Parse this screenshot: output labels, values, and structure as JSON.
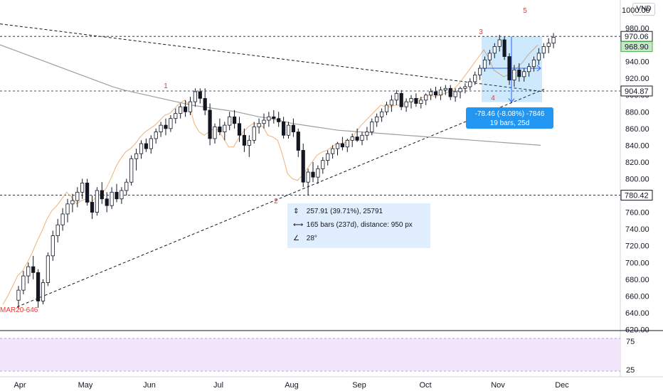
{
  "currency_label": "VND",
  "chart_data": [
    {
      "type": "candlestick",
      "title": "",
      "y_axis": {
        "range": [
          612,
          1012
        ],
        "ticks": [
          620,
          640,
          660,
          680,
          700,
          720,
          740,
          760,
          780,
          800,
          820,
          840,
          860,
          880,
          900,
          920,
          940,
          960,
          980
        ],
        "partial_top_label": "1000.00",
        "position": "right"
      },
      "x_axis": {
        "labels": [
          "Apr",
          "May",
          "Jun",
          "Jul",
          "Aug",
          "Sep",
          "Oct",
          "Nov",
          "Dec"
        ]
      },
      "price_labels": [
        {
          "value": "970.06",
          "style": "black"
        },
        {
          "value": "968.90",
          "style": "green"
        },
        {
          "value": "904.87",
          "style": "black"
        },
        {
          "value": "780.42",
          "style": "black"
        }
      ],
      "horizontal_lines": [
        970.06,
        904.87,
        780.42
      ],
      "wave_labels": [
        "1",
        "2",
        "3",
        "4",
        "5"
      ],
      "low_annotation": "MAR20-646",
      "candles": [
        [
          655,
          672,
          645,
          667
        ],
        [
          667,
          690,
          662,
          684
        ],
        [
          684,
          700,
          675,
          695
        ],
        [
          695,
          708,
          680,
          688
        ],
        [
          688,
          692,
          646,
          654
        ],
        [
          654,
          680,
          650,
          676
        ],
        [
          676,
          712,
          672,
          708
        ],
        [
          708,
          738,
          702,
          732
        ],
        [
          732,
          752,
          724,
          745
        ],
        [
          745,
          765,
          738,
          758
        ],
        [
          758,
          776,
          748,
          770
        ],
        [
          770,
          782,
          760,
          774
        ],
        [
          774,
          790,
          766,
          784
        ],
        [
          784,
          800,
          776,
          795
        ],
        [
          795,
          800,
          768,
          772
        ],
        [
          772,
          780,
          752,
          760
        ],
        [
          760,
          790,
          756,
          786
        ],
        [
          786,
          796,
          770,
          776
        ],
        [
          776,
          784,
          760,
          768
        ],
        [
          768,
          790,
          764,
          784
        ],
        [
          784,
          794,
          772,
          776
        ],
        [
          776,
          790,
          770,
          786
        ],
        [
          786,
          800,
          780,
          796
        ],
        [
          796,
          828,
          792,
          824
        ],
        [
          824,
          836,
          810,
          830
        ],
        [
          830,
          846,
          824,
          842
        ],
        [
          842,
          848,
          832,
          836
        ],
        [
          836,
          852,
          830,
          848
        ],
        [
          848,
          860,
          842,
          856
        ],
        [
          856,
          868,
          850,
          864
        ],
        [
          864,
          872,
          852,
          860
        ],
        [
          860,
          876,
          856,
          872
        ],
        [
          872,
          884,
          866,
          878
        ],
        [
          878,
          890,
          872,
          886
        ],
        [
          886,
          894,
          874,
          880
        ],
        [
          880,
          898,
          876,
          892
        ],
        [
          892,
          908,
          886,
          904
        ],
        [
          904,
          908,
          890,
          896
        ],
        [
          896,
          908,
          876,
          882
        ],
        [
          882,
          890,
          840,
          848
        ],
        [
          848,
          866,
          842,
          862
        ],
        [
          862,
          872,
          852,
          856
        ],
        [
          856,
          868,
          846,
          864
        ],
        [
          864,
          880,
          858,
          874
        ],
        [
          874,
          882,
          860,
          866
        ],
        [
          866,
          874,
          844,
          852
        ],
        [
          852,
          860,
          832,
          840
        ],
        [
          840,
          852,
          826,
          846
        ],
        [
          846,
          868,
          842,
          862
        ],
        [
          862,
          872,
          854,
          866
        ],
        [
          866,
          878,
          860,
          870
        ],
        [
          870,
          880,
          862,
          874
        ],
        [
          874,
          882,
          866,
          872
        ],
        [
          872,
          880,
          862,
          868
        ],
        [
          868,
          874,
          848,
          852
        ],
        [
          852,
          868,
          848,
          864
        ],
        [
          864,
          872,
          850,
          856
        ],
        [
          856,
          860,
          826,
          834
        ],
        [
          834,
          842,
          790,
          796
        ],
        [
          796,
          812,
          780,
          808
        ],
        [
          808,
          820,
          796,
          802
        ],
        [
          802,
          816,
          794,
          812
        ],
        [
          812,
          826,
          806,
          822
        ],
        [
          822,
          834,
          816,
          830
        ],
        [
          830,
          840,
          824,
          836
        ],
        [
          836,
          844,
          828,
          842
        ],
        [
          842,
          850,
          834,
          838
        ],
        [
          838,
          848,
          832,
          846
        ],
        [
          846,
          854,
          838,
          850
        ],
        [
          850,
          860,
          844,
          846
        ],
        [
          846,
          856,
          840,
          852
        ],
        [
          852,
          862,
          846,
          856
        ],
        [
          856,
          872,
          852,
          868
        ],
        [
          868,
          878,
          862,
          874
        ],
        [
          874,
          884,
          868,
          880
        ],
        [
          880,
          892,
          876,
          888
        ],
        [
          888,
          900,
          880,
          894
        ],
        [
          894,
          906,
          888,
          902
        ],
        [
          902,
          906,
          882,
          886
        ],
        [
          886,
          896,
          880,
          892
        ],
        [
          892,
          900,
          884,
          896
        ],
        [
          896,
          902,
          886,
          890
        ],
        [
          890,
          898,
          884,
          894
        ],
        [
          894,
          902,
          888,
          900
        ],
        [
          900,
          908,
          894,
          904
        ],
        [
          904,
          910,
          896,
          900
        ],
        [
          900,
          910,
          894,
          906
        ],
        [
          906,
          912,
          900,
          908
        ],
        [
          908,
          912,
          894,
          898
        ],
        [
          898,
          908,
          892,
          904
        ],
        [
          904,
          910,
          896,
          908
        ],
        [
          908,
          914,
          902,
          910
        ],
        [
          910,
          920,
          906,
          916
        ],
        [
          916,
          928,
          912,
          924
        ],
        [
          924,
          936,
          918,
          932
        ],
        [
          932,
          946,
          928,
          942
        ],
        [
          942,
          954,
          936,
          950
        ],
        [
          950,
          962,
          944,
          958
        ],
        [
          958,
          972,
          952,
          966
        ],
        [
          966,
          970,
          942,
          946
        ],
        [
          946,
          950,
          912,
          918
        ],
        [
          918,
          936,
          910,
          930
        ],
        [
          930,
          938,
          916,
          922
        ],
        [
          922,
          932,
          916,
          928
        ],
        [
          928,
          938,
          922,
          934
        ],
        [
          934,
          946,
          928,
          942
        ],
        [
          942,
          956,
          936,
          950
        ],
        [
          950,
          962,
          944,
          958
        ],
        [
          958,
          968,
          950,
          962
        ],
        [
          962,
          974,
          956,
          969
        ]
      ],
      "series": [
        {
          "name": "",
          "type": "line",
          "color": "#f0b27a",
          "values": [
            650,
            660,
            672,
            684,
            690,
            700,
            712,
            726,
            738,
            752,
            762,
            768,
            776,
            784,
            778,
            770,
            774,
            776,
            772,
            778,
            782,
            788,
            800,
            814,
            824,
            832,
            836,
            842,
            850,
            856,
            860,
            864,
            870,
            876,
            878,
            884,
            890,
            894,
            888,
            866,
            856,
            852,
            856,
            860,
            858,
            848,
            838,
            838,
            848,
            856,
            862,
            866,
            866,
            862,
            852,
            850,
            846,
            828,
            806,
            800,
            798,
            804,
            812,
            820,
            828,
            832,
            834,
            838,
            842,
            842,
            844,
            848,
            856,
            864,
            870,
            876,
            882,
            888,
            886,
            886,
            888,
            888,
            890,
            892,
            896,
            896,
            898,
            900,
            898,
            900,
            902,
            904,
            908,
            914,
            922,
            930,
            938,
            946,
            954,
            944,
            930,
            926,
            922,
            924,
            928,
            934,
            940,
            948,
            954,
            960
          ]
        },
        {
          "name": "",
          "type": "line",
          "color": "#9e9e9e",
          "values": [
            960,
            955,
            950,
            945,
            940,
            935,
            930,
            925,
            920,
            915,
            910,
            906,
            903,
            900,
            897,
            894,
            891,
            888,
            886,
            884,
            882,
            880,
            877,
            874,
            872,
            869,
            866,
            864,
            862,
            860,
            858,
            857,
            856,
            855,
            854,
            853,
            852,
            851,
            850,
            849,
            848,
            847,
            846,
            845,
            844,
            843,
            842,
            841,
            840
          ]
        }
      ],
      "trendlines": [
        {
          "name": "upper-dashed",
          "points": [
            [
              640,
              985
            ],
            [
              932,
              893
            ]
          ]
        },
        {
          "name": "lower-dashed",
          "points": [
            [
              648,
              647
            ],
            [
              932,
              908
            ]
          ]
        }
      ],
      "measure_long": {
        "price_change": "257.91 (39.71%), 25791",
        "range": "165 bars (237d), distance: 950 px",
        "angle": "28°"
      },
      "measure_short": {
        "price_change": "-78.46 (-8.08%) -7846",
        "range": "19 bars, 25d"
      }
    },
    {
      "type": "line",
      "title": "",
      "y_axis": {
        "range": [
          0,
          100
        ],
        "ticks": [
          25,
          75
        ]
      },
      "series": []
    }
  ]
}
